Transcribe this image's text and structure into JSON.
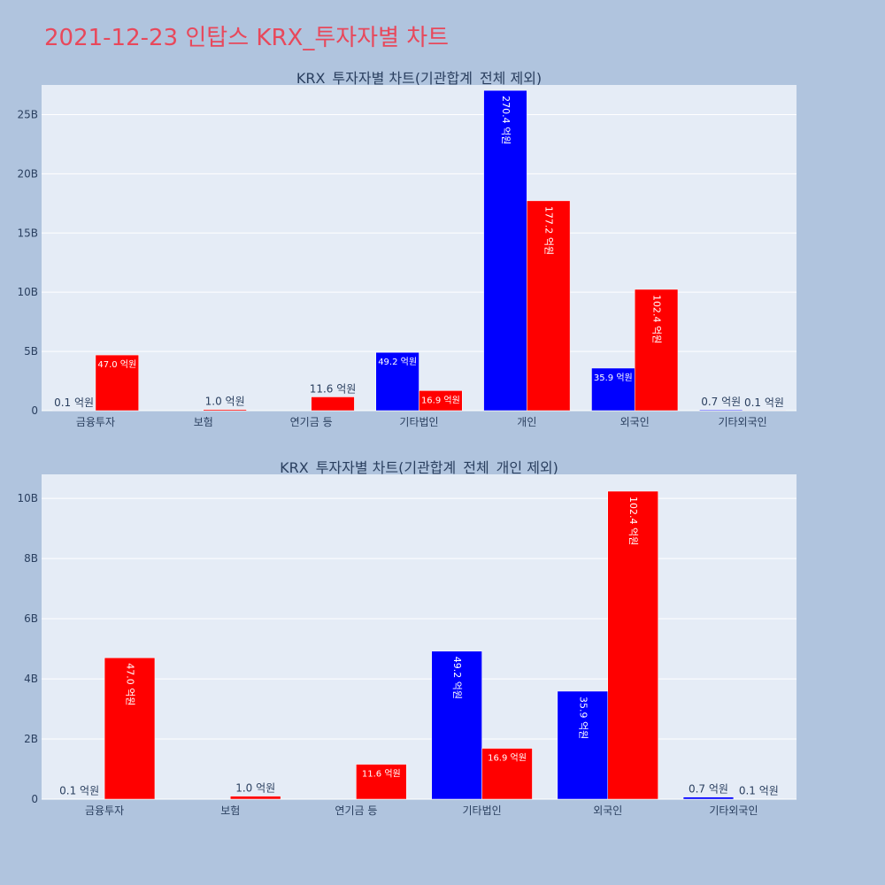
{
  "page": {
    "title": "2021-12-23 인탑스 KRX_투자자별 차트"
  },
  "chart_data": [
    {
      "type": "bar",
      "title": "KRX_투자자별 차트(기관합계_전체 제외)",
      "categories": [
        "금융투자",
        "보험",
        "연기금 등",
        "기타법인",
        "개인",
        "외국인",
        "기타외국인"
      ],
      "ylim": [
        0,
        27500000000
      ],
      "yticks": [
        0,
        5000000000,
        10000000000,
        15000000000,
        20000000000,
        25000000000
      ],
      "ytick_labels": [
        "0",
        "5B",
        "10B",
        "15B",
        "20B",
        "25B"
      ],
      "grid": true,
      "series": [
        {
          "color": "#0000ff",
          "values": [
            10000000,
            0,
            0,
            4920000000,
            27040000000,
            3590000000,
            70000000
          ],
          "labels": [
            "0.1 억원",
            "",
            "",
            "49.2 억원",
            "270.4 억원",
            "35.9 억원",
            "0.7 억원"
          ]
        },
        {
          "color": "#ff0000",
          "values": [
            4700000000,
            100000000,
            1160000000,
            1690000000,
            17720000000,
            10240000000,
            10000000
          ],
          "labels": [
            "47.0 억원",
            "1.0 억원",
            "11.6 억원",
            "16.9 억원",
            "177.2 억원",
            "102.4 억원",
            "0.1 억원"
          ]
        }
      ]
    },
    {
      "type": "bar",
      "title": "KRX_투자자별 차트(기관합계_전체_개인 제외)",
      "categories": [
        "금융투자",
        "보험",
        "연기금 등",
        "기타법인",
        "외국인",
        "기타외국인"
      ],
      "ylim": [
        0,
        10800000000
      ],
      "yticks": [
        0,
        2000000000,
        4000000000,
        6000000000,
        8000000000,
        10000000000
      ],
      "ytick_labels": [
        "0",
        "2B",
        "4B",
        "6B",
        "8B",
        "10B"
      ],
      "grid": true,
      "series": [
        {
          "color": "#0000ff",
          "values": [
            10000000,
            0,
            0,
            4920000000,
            3590000000,
            70000000
          ],
          "labels": [
            "0.1 억원",
            "",
            "",
            "49.2 억원",
            "35.9 억원",
            "0.7 억원"
          ]
        },
        {
          "color": "#ff0000",
          "values": [
            4700000000,
            100000000,
            1160000000,
            1690000000,
            10240000000,
            10000000
          ],
          "labels": [
            "47.0 억원",
            "1.0 억원",
            "11.6 억원",
            "16.9 억원",
            "102.4 억원",
            "0.1 억원"
          ]
        }
      ]
    }
  ]
}
